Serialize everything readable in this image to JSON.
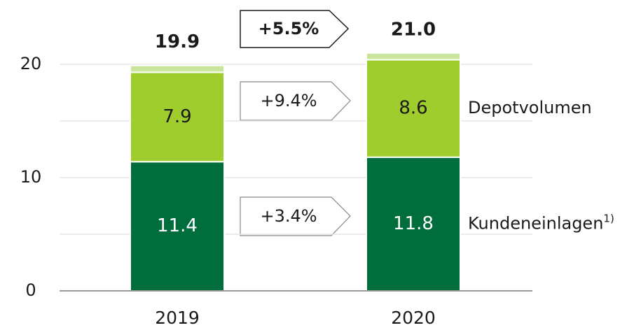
{
  "chart_data": {
    "type": "stacked_bar",
    "categories": [
      "2019",
      "2020"
    ],
    "series": [
      {
        "name": "Kundeneinlagen",
        "footnote": "1)",
        "color": "#006d3c",
        "label_color": "#ffffff",
        "values": [
          11.4,
          11.8
        ]
      },
      {
        "name": "Depotvolumen",
        "color": "#9fcd2d",
        "label_color": "#1a1a1a",
        "values": [
          7.9,
          8.6
        ]
      },
      {
        "color": "#c9e59c",
        "values": [
          0.6,
          0.6
        ]
      }
    ],
    "totals": {
      "values": [
        19.9,
        21.0
      ],
      "value_labels": [
        "19.9",
        "21.0"
      ]
    },
    "annotations": [
      "+5.5%",
      "+9.4%",
      "+3.4%"
    ],
    "ylim": [
      0,
      20
    ],
    "yticks": [
      0,
      10,
      20
    ],
    "minor_grid": [
      5,
      15
    ],
    "grid": true
  }
}
